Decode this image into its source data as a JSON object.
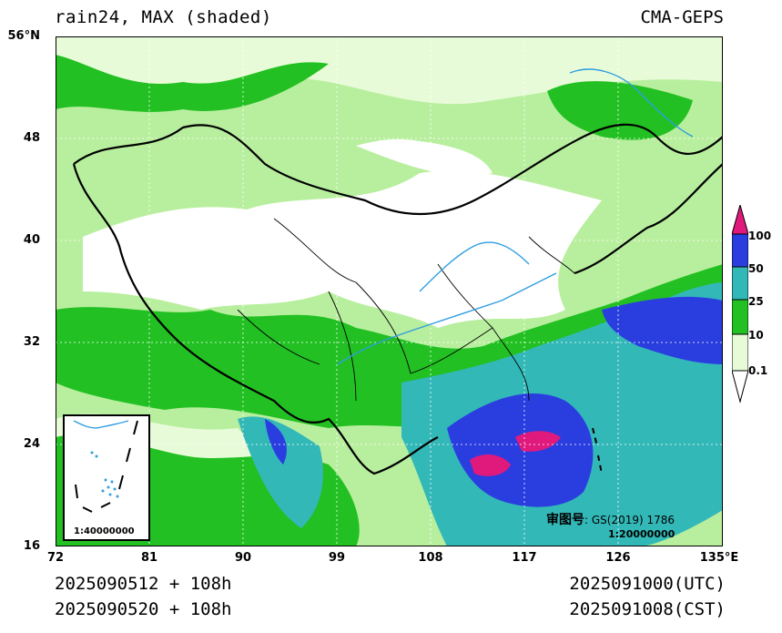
{
  "header": {
    "title": "rain24, MAX (shaded)",
    "model": "CMA-GEPS"
  },
  "axes": {
    "lat_ticks": [
      "56°N",
      "48",
      "40",
      "32",
      "24",
      "16"
    ],
    "lon_ticks": [
      "72",
      "81",
      "90",
      "99",
      "108",
      "117",
      "126",
      "135°E"
    ]
  },
  "footer": {
    "init_utc": "2025090512 + 108h",
    "init_cst": "2025090520 + 108h",
    "valid_utc": "2025091000(UTC)",
    "valid_cst": "2025091008(CST)"
  },
  "colorbar": {
    "levels": [
      "0.1",
      "10",
      "25",
      "50",
      "100"
    ],
    "colors": [
      "#e8fbd8",
      "#b8ef9e",
      "#22c022",
      "#33b8b8",
      "#2a3ee0",
      "#e0197d"
    ]
  },
  "inset": {
    "scale": "1:40000000"
  },
  "map_stamp": {
    "approval": "审图号",
    "code": "GS(2019) 1786",
    "scale": "1:20000000"
  }
}
